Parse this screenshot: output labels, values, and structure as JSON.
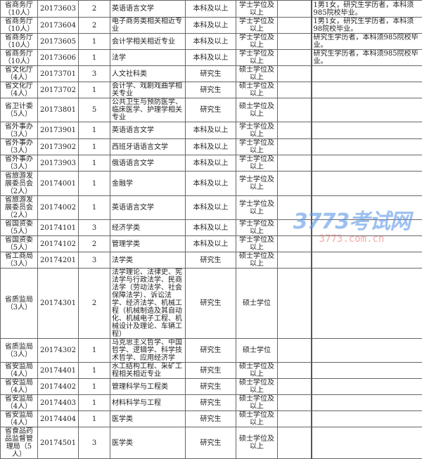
{
  "rows": [
    {
      "dept": "省商务厅（10人）",
      "code": "20173603",
      "count": "2",
      "major": "英语语言文学",
      "edu": "本科及以上",
      "degree": "学士学位及以上",
      "extra": "",
      "note": "1男1女，研究生学历者，本科须985院校毕业。"
    },
    {
      "dept": "省商务厅（10人）",
      "code": "20173604",
      "count": "2",
      "major": "电子商务类相关相近专业",
      "edu": "本科及以上",
      "degree": "学士学位及以上",
      "extra": "",
      "note": "1男1女，研究生学历者，本科须98院校毕业。"
    },
    {
      "dept": "省商务厅（10人）",
      "code": "20173605",
      "count": "1",
      "major": "会计学相关相近专业",
      "edu": "本科及以上",
      "degree": "学士学位及以上",
      "extra": "",
      "note": "研究生学历者，本科须985院校毕业。"
    },
    {
      "dept": "省商务厅（10人）",
      "code": "20173606",
      "count": "1",
      "major": "法学",
      "edu": "本科及以上",
      "degree": "学士学位及以上",
      "extra": "",
      "note": "研究生学历者，本科须985院校毕业。"
    },
    {
      "dept": "省文化厅（4人）",
      "code": "20173701",
      "count": "3",
      "major": "人文社科类",
      "edu": "研究生",
      "degree": "硕士学位及以上",
      "extra": "",
      "note": ""
    },
    {
      "dept": "省文化厅（4人）",
      "code": "20173702",
      "count": "1",
      "major": "会计学、戏剧戏曲学相关专业",
      "edu": "研究生",
      "degree": "硕士学位及以上",
      "extra": "",
      "note": ""
    },
    {
      "dept": "省卫计委（5人）",
      "code": "20173801",
      "count": "5",
      "major": "公共卫生与预防医学、临床医学、护理学相关专业",
      "edu": "研究生",
      "degree": "硕士学位及以上",
      "extra": "",
      "note": ""
    },
    {
      "dept": "省外事办（3人）",
      "code": "20173901",
      "count": "1",
      "major": "英语语言文学",
      "edu": "本科及以上",
      "degree": "学士学位及以上",
      "extra": "",
      "note": ""
    },
    {
      "dept": "省外事办（3人）",
      "code": "20173902",
      "count": "1",
      "major": "西班牙语语言文学",
      "edu": "本科及以上",
      "degree": "学士学位及以上",
      "extra": "",
      "note": ""
    },
    {
      "dept": "省外事办（3人）",
      "code": "20173903",
      "count": "1",
      "major": "俄语语言文学",
      "edu": "本科及以上",
      "degree": "学士学位及以上",
      "extra": "",
      "note": ""
    },
    {
      "dept": "省旅游发展委员会（2人）",
      "code": "20174001",
      "count": "1",
      "major": "金融学",
      "edu": "本科及以上",
      "degree": "学士学位及以上",
      "extra": "",
      "note": ""
    },
    {
      "dept": "省旅游发展委员会（2人）",
      "code": "20174002",
      "count": "1",
      "major": "英语语言文学",
      "edu": "本科及以上",
      "degree": "学士学位及以上",
      "extra": "",
      "note": ""
    },
    {
      "dept": "省国资委（5人）",
      "code": "20174101",
      "count": "3",
      "major": "经济学类",
      "edu": "本科及以上",
      "degree": "学士学位及以上",
      "extra": "",
      "note": ""
    },
    {
      "dept": "省国资委（5人）",
      "code": "20174102",
      "count": "2",
      "major": "管理学类",
      "edu": "本科及以上",
      "degree": "学士学位及以上",
      "extra": "",
      "note": ""
    },
    {
      "dept": "省工商局（3人）",
      "code": "20174201",
      "count": "3",
      "major": "法学类",
      "edu": "研究生",
      "degree": "硕士学位及以上",
      "extra": "",
      "note": ""
    },
    {
      "dept": "省质监局（3人）",
      "code": "20174301",
      "count": "2",
      "major": "法学理论、法律史、宪法学与行政法学、民商法学（劳动法学、社会保障法学）、诉讼法学、经济法学、机械工程（机械制造及其自动化、机械电子工程、机械设计及理论、车辆工程）",
      "edu": "研究生",
      "degree": "硕士学位",
      "extra": "",
      "note": ""
    },
    {
      "dept": "省质监局（3人）",
      "code": "20174302",
      "count": "1",
      "major": "马克思主义哲学、中国哲学、逻辑学、科学技术哲学、应用经济学",
      "edu": "研究生",
      "degree": "硕士学位",
      "extra": "",
      "note": ""
    },
    {
      "dept": "省安监局（4人）",
      "code": "20174401",
      "count": "1",
      "major": "水工结构工程、采矿工程相关相近专业",
      "edu": "研究生",
      "degree": "硕士学位及以上",
      "extra": "",
      "note": ""
    },
    {
      "dept": "省安监局（4人）",
      "code": "20174402",
      "count": "1",
      "major": "管理科学与工程类",
      "edu": "研究生",
      "degree": "硕士学位及以上",
      "extra": "",
      "note": ""
    },
    {
      "dept": "省安监局（4人）",
      "code": "20174403",
      "count": "1",
      "major": "材料科学与工程",
      "edu": "研究生",
      "degree": "硕士学位及以上",
      "extra": "",
      "note": ""
    },
    {
      "dept": "省安监局（4人）",
      "code": "20174404",
      "count": "1",
      "major": "医学类",
      "edu": "研究生",
      "degree": "硕士学位及以上",
      "extra": "",
      "note": ""
    },
    {
      "dept": "省食品药品监督管理局（5人）",
      "code": "20174501",
      "count": "3",
      "major": "医学类",
      "edu": "研究生",
      "degree": "硕士学位及以上",
      "extra": "",
      "note": ""
    }
  ],
  "watermark": {
    "logo": "3773考试网",
    "url": "3773.com.cn",
    "colors": {
      "logo": "#5a96e6",
      "url": "#f06e6e"
    }
  }
}
